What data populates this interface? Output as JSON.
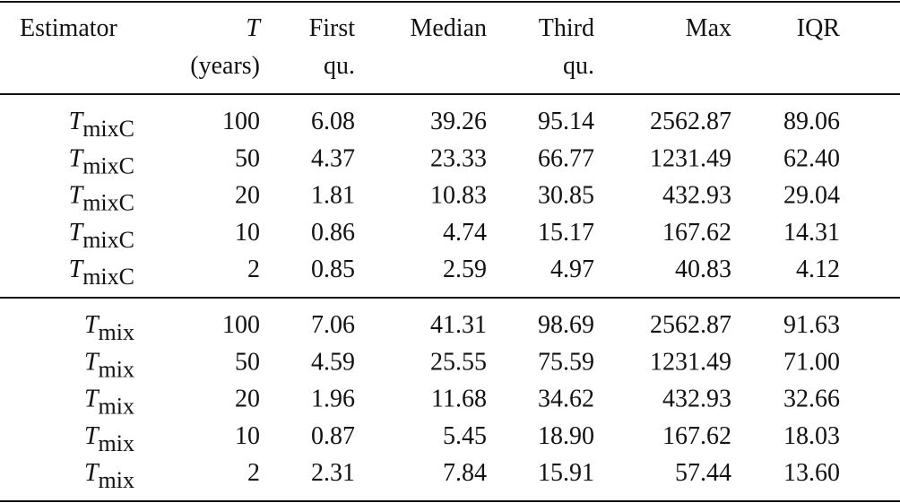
{
  "header": [
    [
      "Estimator"
    ],
    [
      "T",
      "(years)"
    ],
    [
      "First",
      "qu."
    ],
    [
      "Median"
    ],
    [
      "Third",
      "qu."
    ],
    [
      "Max"
    ],
    [
      "IQR"
    ]
  ],
  "groups": [
    {
      "rows": [
        [
          {
            "main": "T",
            "sub": "mixC"
          },
          "100",
          "6.08",
          "39.26",
          "95.14",
          "2562.87",
          "89.06"
        ],
        [
          {
            "main": "T",
            "sub": "mixC"
          },
          "50",
          "4.37",
          "23.33",
          "66.77",
          "1231.49",
          "62.40"
        ],
        [
          {
            "main": "T",
            "sub": "mixC"
          },
          "20",
          "1.81",
          "10.83",
          "30.85",
          "432.93",
          "29.04"
        ],
        [
          {
            "main": "T",
            "sub": "mixC"
          },
          "10",
          "0.86",
          "4.74",
          "15.17",
          "167.62",
          "14.31"
        ],
        [
          {
            "main": "T",
            "sub": "mixC"
          },
          "2",
          "0.85",
          "2.59",
          "4.97",
          "40.83",
          "4.12"
        ]
      ]
    },
    {
      "rows": [
        [
          {
            "main": "T",
            "sub": "mix"
          },
          "100",
          "7.06",
          "41.31",
          "98.69",
          "2562.87",
          "91.63"
        ],
        [
          {
            "main": "T",
            "sub": "mix"
          },
          "50",
          "4.59",
          "25.55",
          "75.59",
          "1231.49",
          "71.00"
        ],
        [
          {
            "main": "T",
            "sub": "mix"
          },
          "20",
          "1.96",
          "11.68",
          "34.62",
          "432.93",
          "32.66"
        ],
        [
          {
            "main": "T",
            "sub": "mix"
          },
          "10",
          "0.87",
          "5.45",
          "18.90",
          "167.62",
          "18.03"
        ],
        [
          {
            "main": "T",
            "sub": "mix"
          },
          "2",
          "2.31",
          "7.84",
          "15.91",
          "57.44",
          "13.60"
        ]
      ]
    }
  ]
}
